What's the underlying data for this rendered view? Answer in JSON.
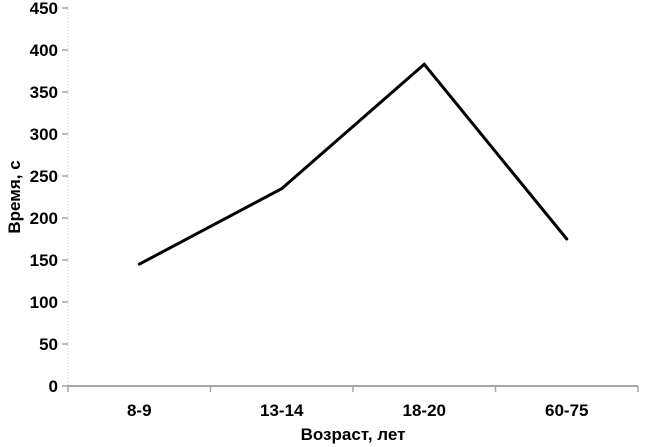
{
  "chart_data": {
    "type": "line",
    "title": "",
    "categories": [
      "8-9",
      "13-14",
      "18-20",
      "60-75"
    ],
    "values": [
      145,
      235,
      383,
      175
    ],
    "xlabel": "Возраст, лет",
    "ylabel": "Время, с",
    "ylim": [
      0,
      450
    ],
    "ytick_step": 50,
    "yticks": [
      0,
      50,
      100,
      150,
      200,
      250,
      300,
      350,
      400,
      450
    ],
    "grid": false,
    "legend": "none",
    "line_color": "#000000",
    "line_width": 3,
    "axis_color": "#a6a6a6",
    "yaxis_line_color": "#c9c9c9",
    "text_color": "#000000",
    "background": "#ffffff"
  }
}
